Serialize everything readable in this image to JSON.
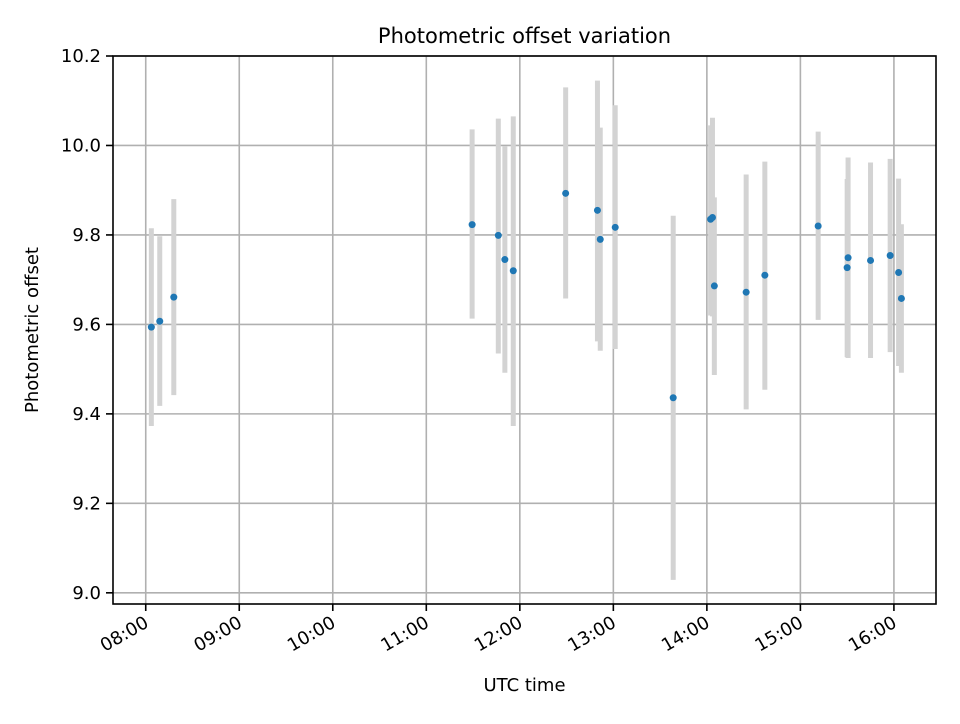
{
  "chart_data": {
    "type": "scatter",
    "title": "Photometric offset variation",
    "xlabel": "UTC time",
    "ylabel": "Photometric offset",
    "x_unit": "hours",
    "xlim": [
      7.65,
      16.45
    ],
    "ylim": [
      8.975,
      10.2
    ],
    "grid": true,
    "x_ticks": [
      {
        "value": 8,
        "label": "08:00"
      },
      {
        "value": 9,
        "label": "09:00"
      },
      {
        "value": 10,
        "label": "10:00"
      },
      {
        "value": 11,
        "label": "11:00"
      },
      {
        "value": 12,
        "label": "12:00"
      },
      {
        "value": 13,
        "label": "13:00"
      },
      {
        "value": 14,
        "label": "14:00"
      },
      {
        "value": 15,
        "label": "15:00"
      },
      {
        "value": 16,
        "label": "16:00"
      }
    ],
    "y_ticks": [
      {
        "value": 9.0,
        "label": "9.0"
      },
      {
        "value": 9.2,
        "label": "9.2"
      },
      {
        "value": 9.4,
        "label": "9.4"
      },
      {
        "value": 9.6,
        "label": "9.6"
      },
      {
        "value": 9.8,
        "label": "9.8"
      },
      {
        "value": 10.0,
        "label": "10.0"
      },
      {
        "value": 10.2,
        "label": "10.2"
      }
    ],
    "colors": {
      "point": "#1f77b4",
      "errorbar": "#d3d3d3",
      "grid": "#b0b0b0"
    },
    "points": [
      {
        "x": 8.06,
        "y": 9.594,
        "ylow": 9.373,
        "yhigh": 9.815
      },
      {
        "x": 8.15,
        "y": 9.607,
        "ylow": 9.418,
        "yhigh": 9.797
      },
      {
        "x": 8.3,
        "y": 9.661,
        "ylow": 9.442,
        "yhigh": 9.88
      },
      {
        "x": 11.49,
        "y": 9.823,
        "ylow": 9.613,
        "yhigh": 10.036
      },
      {
        "x": 11.77,
        "y": 9.799,
        "ylow": 9.535,
        "yhigh": 10.06
      },
      {
        "x": 11.84,
        "y": 9.745,
        "ylow": 9.492,
        "yhigh": 9.998
      },
      {
        "x": 11.93,
        "y": 9.72,
        "ylow": 9.373,
        "yhigh": 10.065
      },
      {
        "x": 12.49,
        "y": 9.893,
        "ylow": 9.658,
        "yhigh": 10.13
      },
      {
        "x": 12.83,
        "y": 9.855,
        "ylow": 9.562,
        "yhigh": 10.145
      },
      {
        "x": 12.86,
        "y": 9.79,
        "ylow": 9.541,
        "yhigh": 10.04
      },
      {
        "x": 13.02,
        "y": 9.817,
        "ylow": 9.545,
        "yhigh": 10.09
      },
      {
        "x": 13.64,
        "y": 9.436,
        "ylow": 9.029,
        "yhigh": 9.843
      },
      {
        "x": 14.04,
        "y": 9.835,
        "ylow": 9.62,
        "yhigh": 10.045
      },
      {
        "x": 14.06,
        "y": 9.839,
        "ylow": 9.618,
        "yhigh": 10.062
      },
      {
        "x": 14.08,
        "y": 9.686,
        "ylow": 9.487,
        "yhigh": 9.884
      },
      {
        "x": 14.42,
        "y": 9.672,
        "ylow": 9.41,
        "yhigh": 9.935
      },
      {
        "x": 14.62,
        "y": 9.71,
        "ylow": 9.454,
        "yhigh": 9.964
      },
      {
        "x": 15.19,
        "y": 9.82,
        "ylow": 9.61,
        "yhigh": 10.031
      },
      {
        "x": 15.5,
        "y": 9.727,
        "ylow": 9.527,
        "yhigh": 9.925
      },
      {
        "x": 15.51,
        "y": 9.749,
        "ylow": 9.525,
        "yhigh": 9.973
      },
      {
        "x": 15.75,
        "y": 9.743,
        "ylow": 9.525,
        "yhigh": 9.962
      },
      {
        "x": 15.96,
        "y": 9.754,
        "ylow": 9.538,
        "yhigh": 9.97
      },
      {
        "x": 16.05,
        "y": 9.716,
        "ylow": 9.507,
        "yhigh": 9.926
      },
      {
        "x": 16.08,
        "y": 9.658,
        "ylow": 9.492,
        "yhigh": 9.824
      }
    ]
  }
}
